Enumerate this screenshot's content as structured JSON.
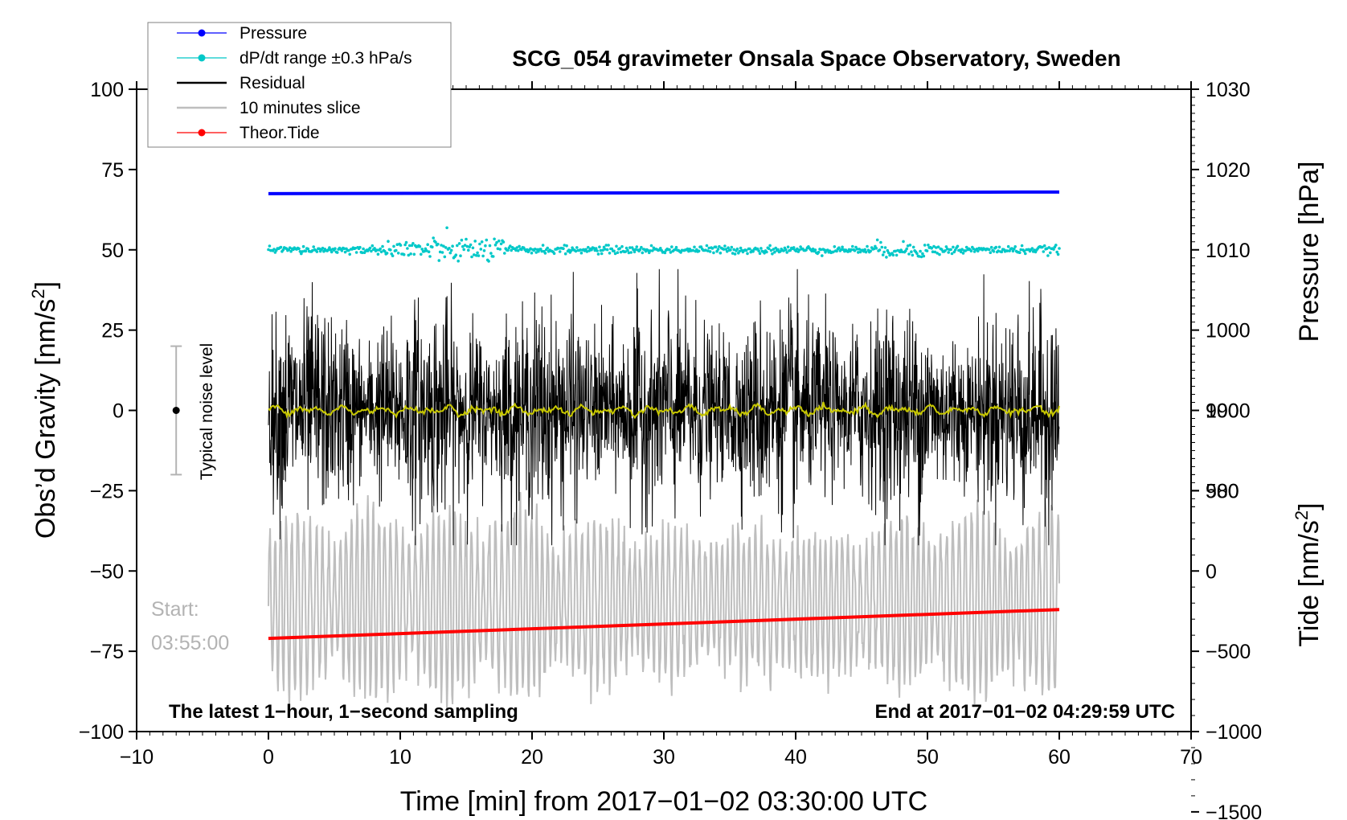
{
  "chart_data": {
    "type": "line",
    "title": "SCG_054 gravimeter Onsala Space Observatory, Sweden",
    "xlabel": "Time [min] from 2017−01−02 03:30:00 UTC",
    "ylabel_left": "Obs’d Gravity [nm/s",
    "ylabel_left_sup": "2",
    "ylabel_left_end": "]",
    "ylabel_right_top": "Pressure [hPa]",
    "ylabel_right_bottom": "Tide [nm/s",
    "ylabel_right_bottom_sup": "2",
    "ylabel_right_bottom_end": "]",
    "xlim": [
      -10,
      70
    ],
    "ylim": [
      -100,
      100
    ],
    "x_ticks": [
      -10,
      0,
      10,
      20,
      30,
      40,
      50,
      60,
      70
    ],
    "x_tick_labels": [
      "−10",
      "0",
      "10",
      "20",
      "30",
      "40",
      "50",
      "60",
      "70"
    ],
    "y_ticks": [
      100,
      75,
      50,
      25,
      0,
      -25,
      -50,
      -75,
      -100
    ],
    "y_tick_labels": [
      "100",
      "75",
      "50",
      "25",
      "0",
      "−25",
      "−50",
      "−75",
      "−100"
    ],
    "pressure_axis": {
      "ticks": [
        1030,
        1020,
        1010,
        1000,
        990,
        980
      ],
      "tick_labels": [
        "1030",
        "1020",
        "1010",
        "1000",
        "990",
        "980"
      ],
      "gravity_at_1030": 100,
      "gravity_per_hPa": 2.5
    },
    "tide_axis": {
      "ticks": [
        1000,
        500,
        0,
        -500,
        -1000,
        -1500
      ],
      "tick_labels": [
        "1000",
        "500",
        "0",
        "−500",
        "−1000",
        "−1500"
      ],
      "gravity_at_0": -50,
      "gravity_per_nms2": 0.05
    },
    "legend": [
      {
        "label": "Pressure",
        "color": "#0000ff",
        "marker": true
      },
      {
        "label": "dP/dt range ±0.3 hPa/s",
        "color": "#00c8c8",
        "marker": true
      },
      {
        "label": "Residual",
        "color": "#000000",
        "marker": false
      },
      {
        "label": "10 minutes slice",
        "color": "#bebebe",
        "marker": false
      },
      {
        "label": "Theor.Tide",
        "color": "#ff0000",
        "marker": true
      }
    ],
    "series": [
      {
        "name": "Pressure",
        "color": "#0000ff",
        "x_range": [
          0,
          60
        ],
        "gravity_value_start": 67.5,
        "gravity_value_end": 68.0
      },
      {
        "name": "dP/dt range ±0.3 hPa/s",
        "color": "#00c8c8",
        "x_range": [
          0,
          60
        ],
        "center": 50,
        "spread": 2
      },
      {
        "name": "Residual",
        "color": "#000000",
        "x_range": [
          0,
          60
        ],
        "center": 0,
        "amplitude": 25
      },
      {
        "name": "Smoothed residual",
        "color": "#c8c800",
        "x_range": [
          0,
          60
        ],
        "center": 0,
        "amplitude": 1.5
      },
      {
        "name": "10 minutes slice",
        "color": "#bebebe",
        "x_range": [
          0,
          60
        ],
        "center": -60,
        "amplitude": 30
      },
      {
        "name": "Theor.Tide",
        "color": "#ff0000",
        "x_range": [
          0,
          60
        ],
        "gravity_value_start": -71,
        "gravity_value_end": -62
      }
    ],
    "annotations": {
      "bottom_left": "The latest 1−hour, 1−second sampling",
      "bottom_right": "End at 2017−01−02 04:29:59 UTC",
      "start_label": "Start:",
      "start_time": "03:55:00",
      "noise_label": "Typical noise level",
      "noise_range": [
        -20,
        20
      ],
      "noise_x": -7
    }
  }
}
